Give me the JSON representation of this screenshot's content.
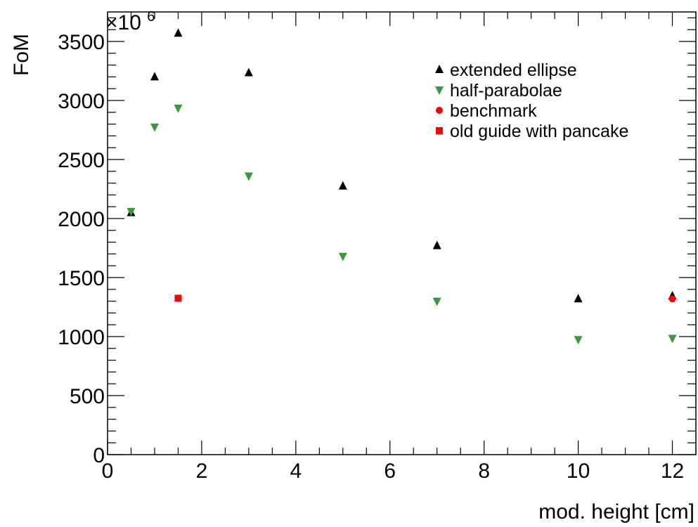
{
  "chart_data": {
    "type": "scatter",
    "title": "",
    "xlabel": "mod. height [cm]",
    "ylabel": "FoM",
    "y_multiplier_base": "×10",
    "y_multiplier_exp": "6",
    "xlim": [
      0,
      12.5
    ],
    "ylim": [
      0,
      3750
    ],
    "x_ticks": [
      0,
      2,
      4,
      6,
      8,
      10,
      12
    ],
    "y_ticks": [
      0,
      500,
      1000,
      1500,
      2000,
      2500,
      3000,
      3500
    ],
    "grid": false,
    "legend_position": "top-right",
    "series": [
      {
        "name": "extended ellipse",
        "marker": "triangle-up",
        "color": "#000000",
        "x": [
          0.5,
          1,
          1.5,
          3,
          5,
          7,
          10,
          12
        ],
        "y": [
          2050,
          3200,
          3570,
          3235,
          2275,
          1770,
          1320,
          1345
        ]
      },
      {
        "name": "half-parabolae",
        "marker": "triangle-down",
        "color": "#3a9a3a",
        "x": [
          0.5,
          1,
          1.5,
          3,
          5,
          7,
          10,
          12
        ],
        "y": [
          2060,
          2775,
          2935,
          2360,
          1680,
          1300,
          975,
          985
        ]
      },
      {
        "name": "benchmark",
        "marker": "circle",
        "color": "#ff0000",
        "x": [
          12
        ],
        "y": [
          1320
        ]
      },
      {
        "name": "old guide with pancake",
        "marker": "square",
        "color": "#ff0000",
        "x": [
          1.5
        ],
        "y": [
          1325
        ]
      }
    ]
  }
}
